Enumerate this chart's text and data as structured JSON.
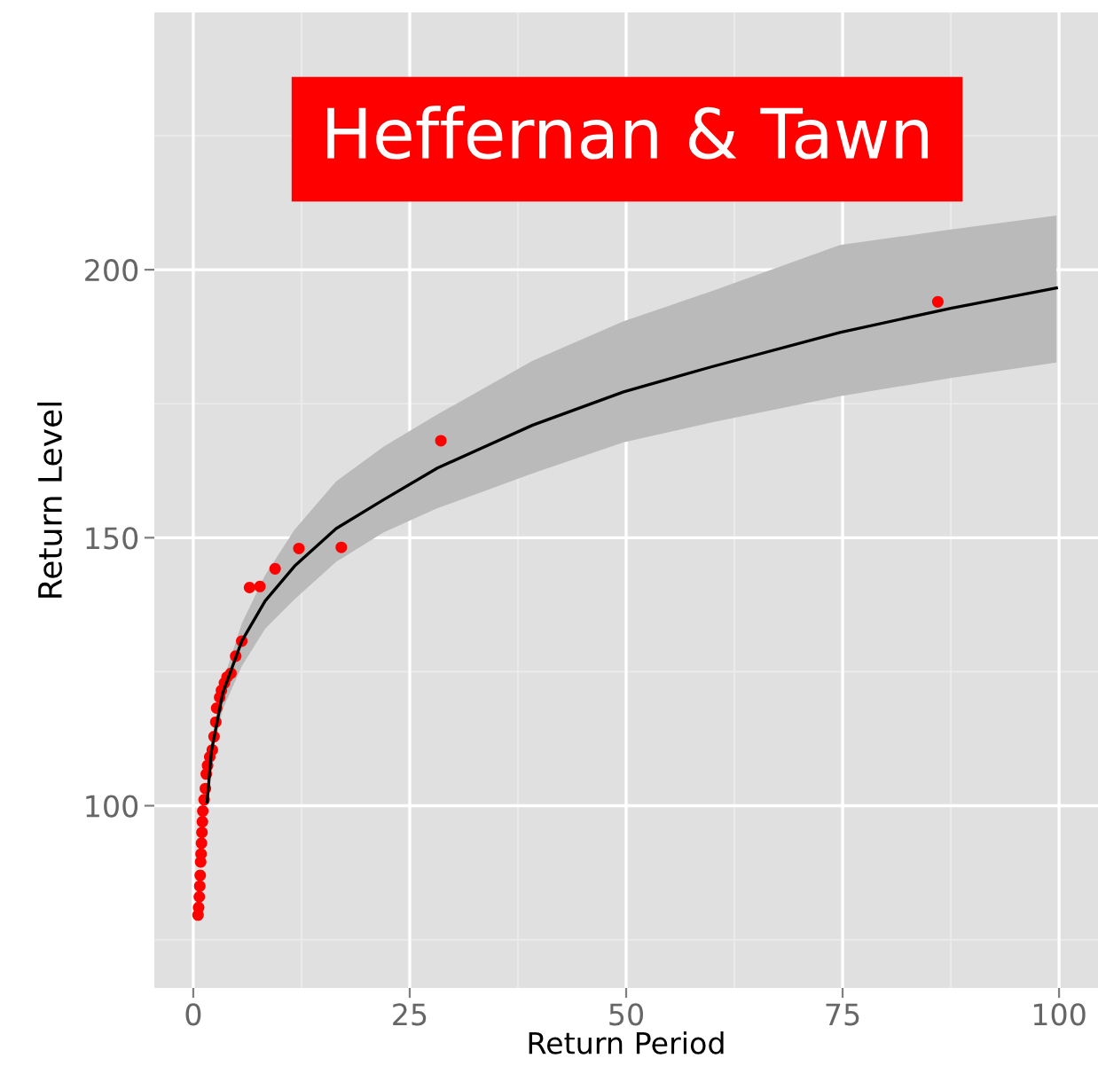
{
  "chart_data": {
    "type": "scatter",
    "title": "Heffernan & Tawn",
    "xlabel": "Return Period",
    "ylabel": "Return Level",
    "xlim": [
      -4.5,
      104.5
    ],
    "ylim": [
      66,
      248
    ],
    "xticks": [
      0,
      25,
      50,
      75,
      100
    ],
    "yticks": [
      100,
      150,
      200
    ],
    "grid": true,
    "marker": "circle",
    "series": [
      {
        "type": "line",
        "color": "#000000",
        "line_style": "solid",
        "marker": "none",
        "x": [
          1.6,
          2.1,
          3.4,
          5.6,
          8.3,
          11.7,
          16.5,
          22.0,
          28.2,
          39.2,
          49.7,
          59.9,
          74.7,
          87.5,
          99.7
        ],
        "values": [
          100.7,
          110.2,
          121.0,
          130.7,
          138.2,
          144.7,
          151.7,
          157.1,
          163.0,
          171.0,
          177.2,
          181.9,
          188.3,
          192.8,
          196.6
        ],
        "lower": [
          100,
          109,
          118,
          126,
          133,
          138.5,
          145.5,
          151,
          155.5,
          162,
          167.8,
          171.5,
          176.4,
          179.8,
          182.7
        ],
        "upper": [
          101.5,
          111.5,
          123,
          134,
          143,
          151.5,
          160.5,
          167,
          173,
          183,
          190.4,
          196,
          204.6,
          207.5,
          210.1
        ]
      },
      {
        "color": "#ff0000",
        "x": [
          86.0,
          28.6,
          17.1,
          12.2,
          9.45,
          7.7,
          6.5,
          5.6,
          4.9,
          4.35,
          3.9,
          3.6,
          3.25,
          3.05,
          2.7,
          2.6,
          2.4,
          2.2,
          1.9,
          1.65,
          1.5,
          1.4,
          1.25,
          1.1,
          1.05,
          1.0,
          0.95,
          0.9,
          0.85,
          0.8,
          0.75,
          0.7,
          0.62,
          0.55
        ],
        "values": [
          194.0,
          168.1,
          148.2,
          148.0,
          144.2,
          140.9,
          140.7,
          130.7,
          127.9,
          124.7,
          124.0,
          122.9,
          121.5,
          120.2,
          118.2,
          115.6,
          112.9,
          110.4,
          109.1,
          107.5,
          105.9,
          103.2,
          101.1,
          99,
          97,
          95,
          93,
          91,
          89.5,
          87,
          85,
          83,
          81,
          79.6
        ]
      }
    ]
  }
}
